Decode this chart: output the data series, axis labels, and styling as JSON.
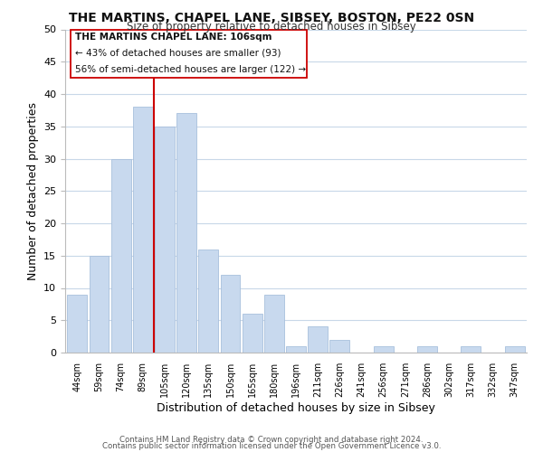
{
  "title": "THE MARTINS, CHAPEL LANE, SIBSEY, BOSTON, PE22 0SN",
  "subtitle": "Size of property relative to detached houses in Sibsey",
  "xlabel": "Distribution of detached houses by size in Sibsey",
  "ylabel": "Number of detached properties",
  "bar_color": "#c8d9ee",
  "bar_edge_color": "#a8c0dc",
  "categories": [
    "44sqm",
    "59sqm",
    "74sqm",
    "89sqm",
    "105sqm",
    "120sqm",
    "135sqm",
    "150sqm",
    "165sqm",
    "180sqm",
    "196sqm",
    "211sqm",
    "226sqm",
    "241sqm",
    "256sqm",
    "271sqm",
    "286sqm",
    "302sqm",
    "317sqm",
    "332sqm",
    "347sqm"
  ],
  "values": [
    9,
    15,
    30,
    38,
    35,
    37,
    16,
    12,
    6,
    9,
    1,
    4,
    2,
    0,
    1,
    0,
    1,
    0,
    1,
    0,
    1
  ],
  "ylim": [
    0,
    50
  ],
  "yticks": [
    0,
    5,
    10,
    15,
    20,
    25,
    30,
    35,
    40,
    45,
    50
  ],
  "vline_color": "#cc0000",
  "annotation_title": "THE MARTINS CHAPEL LANE: 106sqm",
  "annotation_line1": "← 43% of detached houses are smaller (93)",
  "annotation_line2": "56% of semi-detached houses are larger (122) →",
  "footer_line1": "Contains HM Land Registry data © Crown copyright and database right 2024.",
  "footer_line2": "Contains public sector information licensed under the Open Government Licence v3.0.",
  "background_color": "#ffffff",
  "grid_color": "#c8d8e8"
}
